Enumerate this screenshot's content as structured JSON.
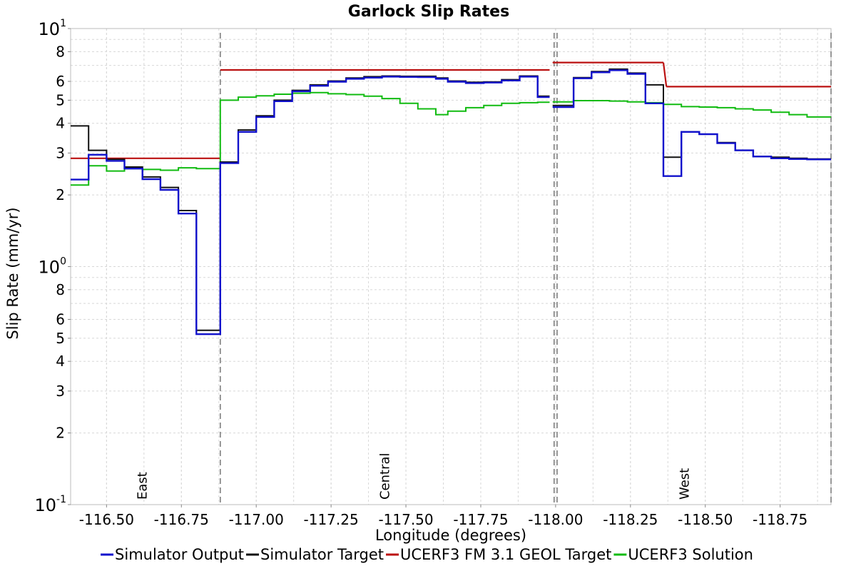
{
  "chart_data": {
    "type": "line",
    "title": "Garlock Slip Rates",
    "xlabel": "Longitude (degrees)",
    "ylabel": "Slip Rate (mm/yr)",
    "xlim": [
      -116.38,
      -118.92
    ],
    "ylim": [
      0.1,
      10
    ],
    "y_scale": "log",
    "grid": true,
    "legend_position": "bottom",
    "x_ticks": [
      -116.5,
      -116.75,
      -117.0,
      -117.25,
      -117.5,
      -117.75,
      -118.0,
      -118.25,
      -118.5,
      -118.75
    ],
    "x_tick_labels": [
      "-116.50",
      "-116.75",
      "-117.00",
      "-117.25",
      "-117.50",
      "-117.75",
      "-118.00",
      "-118.25",
      "-118.50",
      "-118.75"
    ],
    "y_major_ticks": [
      {
        "value": 10,
        "base": "10",
        "exp": "1"
      },
      {
        "value": 1,
        "base": "10",
        "exp": "0"
      },
      {
        "value": 0.1,
        "base": "10",
        "exp": "-1"
      }
    ],
    "y_minor_ticks": [
      {
        "value": 8,
        "label": "8"
      },
      {
        "value": 6,
        "label": "6"
      },
      {
        "value": 5,
        "label": "5"
      },
      {
        "value": 4,
        "label": "4"
      },
      {
        "value": 3,
        "label": "3"
      },
      {
        "value": 2,
        "label": "2"
      },
      {
        "value": 0.8,
        "label": "8"
      },
      {
        "value": 0.6,
        "label": "6"
      },
      {
        "value": 0.5,
        "label": "5"
      },
      {
        "value": 0.4,
        "label": "4"
      },
      {
        "value": 0.3,
        "label": "3"
      },
      {
        "value": 0.2,
        "label": "2"
      }
    ],
    "section_boundaries": [
      -116.88,
      -117.995,
      -118.005,
      -118.92
    ],
    "section_labels": [
      {
        "text": "East",
        "x": -116.62
      },
      {
        "text": "Central",
        "x": -117.43
      },
      {
        "text": "West",
        "x": -118.43
      }
    ],
    "series": [
      {
        "name": "UCERF3 FM 3.1 GEOL Target",
        "color": "#bb1111",
        "segments": [
          {
            "x": [
              -116.38,
              -116.88
            ],
            "y": [
              2.85,
              2.85
            ]
          },
          {
            "x": [
              -116.88,
              -117.98
            ],
            "y": [
              6.7,
              6.7
            ]
          },
          {
            "x": [
              -117.99,
              -118.36
            ],
            "y": [
              7.2,
              7.2
            ]
          },
          {
            "x": [
              -118.36,
              -118.37
            ],
            "y": [
              7.2,
              5.7
            ]
          },
          {
            "x": [
              -118.37,
              -118.92
            ],
            "y": [
              5.7,
              5.7
            ]
          }
        ]
      },
      {
        "name": "UCERF3 Solution",
        "color": "#11bb11",
        "steps": [
          [
            -116.38,
            -116.44,
            2.2
          ],
          [
            -116.44,
            -116.5,
            2.65
          ],
          [
            -116.5,
            -116.56,
            2.52
          ],
          [
            -116.56,
            -116.62,
            2.58
          ],
          [
            -116.62,
            -116.68,
            2.56
          ],
          [
            -116.68,
            -116.74,
            2.54
          ],
          [
            -116.74,
            -116.8,
            2.6
          ],
          [
            -116.8,
            -116.88,
            2.58
          ],
          [
            -116.88,
            -116.94,
            5.0
          ],
          [
            -116.94,
            -117.0,
            5.15
          ],
          [
            -117.0,
            -117.06,
            5.22
          ],
          [
            -117.06,
            -117.12,
            5.3
          ],
          [
            -117.12,
            -117.18,
            5.35
          ],
          [
            -117.18,
            -117.24,
            5.38
          ],
          [
            -117.24,
            -117.3,
            5.32
          ],
          [
            -117.3,
            -117.36,
            5.28
          ],
          [
            -117.36,
            -117.42,
            5.2
          ],
          [
            -117.42,
            -117.48,
            5.08
          ],
          [
            -117.48,
            -117.54,
            4.85
          ],
          [
            -117.54,
            -117.6,
            4.6
          ],
          [
            -117.6,
            -117.64,
            4.35
          ],
          [
            -117.64,
            -117.7,
            4.5
          ],
          [
            -117.7,
            -117.76,
            4.65
          ],
          [
            -117.76,
            -117.82,
            4.75
          ],
          [
            -117.82,
            -117.88,
            4.85
          ],
          [
            -117.88,
            -117.94,
            4.88
          ],
          [
            -117.94,
            -117.98,
            4.9
          ],
          [
            -117.99,
            -118.06,
            4.92
          ],
          [
            -118.06,
            -118.12,
            4.98
          ],
          [
            -118.12,
            -118.18,
            4.98
          ],
          [
            -118.18,
            -118.24,
            4.96
          ],
          [
            -118.24,
            -118.3,
            4.92
          ],
          [
            -118.3,
            -118.36,
            4.88
          ],
          [
            -118.36,
            -118.42,
            4.8
          ],
          [
            -118.42,
            -118.48,
            4.7
          ],
          [
            -118.48,
            -118.54,
            4.68
          ],
          [
            -118.54,
            -118.6,
            4.65
          ],
          [
            -118.6,
            -118.66,
            4.6
          ],
          [
            -118.66,
            -118.72,
            4.55
          ],
          [
            -118.72,
            -118.78,
            4.45
          ],
          [
            -118.78,
            -118.84,
            4.35
          ],
          [
            -118.84,
            -118.92,
            4.25
          ]
        ]
      },
      {
        "name": "Simulator Target",
        "color": "#111111",
        "steps": [
          [
            -116.38,
            -116.44,
            3.9
          ],
          [
            -116.44,
            -116.5,
            3.08
          ],
          [
            -116.5,
            -116.56,
            2.82
          ],
          [
            -116.56,
            -116.62,
            2.62
          ],
          [
            -116.62,
            -116.68,
            2.38
          ],
          [
            -116.68,
            -116.74,
            2.15
          ],
          [
            -116.74,
            -116.8,
            1.72
          ],
          [
            -116.8,
            -116.88,
            0.54
          ],
          [
            -116.88,
            -116.94,
            2.75
          ],
          [
            -116.94,
            -117.0,
            3.75
          ],
          [
            -117.0,
            -117.06,
            4.3
          ],
          [
            -117.06,
            -117.12,
            5.0
          ],
          [
            -117.12,
            -117.18,
            5.5
          ],
          [
            -117.18,
            -117.24,
            5.8
          ],
          [
            -117.24,
            -117.3,
            6.02
          ],
          [
            -117.3,
            -117.36,
            6.2
          ],
          [
            -117.36,
            -117.42,
            6.28
          ],
          [
            -117.42,
            -117.48,
            6.32
          ],
          [
            -117.48,
            -117.54,
            6.3
          ],
          [
            -117.54,
            -117.6,
            6.3
          ],
          [
            -117.6,
            -117.64,
            6.2
          ],
          [
            -117.64,
            -117.7,
            6.02
          ],
          [
            -117.7,
            -117.76,
            5.95
          ],
          [
            -117.76,
            -117.82,
            5.97
          ],
          [
            -117.82,
            -117.88,
            6.1
          ],
          [
            -117.88,
            -117.94,
            6.32
          ],
          [
            -117.94,
            -117.98,
            5.2
          ],
          [
            -117.99,
            -118.06,
            4.75
          ],
          [
            -118.06,
            -118.12,
            6.22
          ],
          [
            -118.12,
            -118.18,
            6.6
          ],
          [
            -118.18,
            -118.24,
            6.75
          ],
          [
            -118.24,
            -118.3,
            6.5
          ],
          [
            -118.3,
            -118.36,
            5.8
          ],
          [
            -118.36,
            -118.42,
            2.88
          ],
          [
            -118.42,
            -118.48,
            3.68
          ],
          [
            -118.48,
            -118.54,
            3.6
          ],
          [
            -118.54,
            -118.6,
            3.32
          ],
          [
            -118.6,
            -118.66,
            3.08
          ],
          [
            -118.66,
            -118.72,
            2.9
          ],
          [
            -118.72,
            -118.78,
            2.88
          ],
          [
            -118.78,
            -118.84,
            2.85
          ],
          [
            -118.84,
            -118.92,
            2.83
          ]
        ]
      },
      {
        "name": "Simulator Output",
        "color": "#1111cc",
        "steps": [
          [
            -116.38,
            -116.44,
            2.32
          ],
          [
            -116.44,
            -116.5,
            2.95
          ],
          [
            -116.5,
            -116.56,
            2.78
          ],
          [
            -116.56,
            -116.62,
            2.58
          ],
          [
            -116.62,
            -116.68,
            2.33
          ],
          [
            -116.68,
            -116.74,
            2.1
          ],
          [
            -116.74,
            -116.8,
            1.67
          ],
          [
            -116.8,
            -116.88,
            0.52
          ],
          [
            -116.88,
            -116.94,
            2.72
          ],
          [
            -116.94,
            -117.0,
            3.68
          ],
          [
            -117.0,
            -117.06,
            4.25
          ],
          [
            -117.06,
            -117.12,
            4.95
          ],
          [
            -117.12,
            -117.18,
            5.45
          ],
          [
            -117.18,
            -117.24,
            5.75
          ],
          [
            -117.24,
            -117.3,
            5.98
          ],
          [
            -117.3,
            -117.36,
            6.15
          ],
          [
            -117.36,
            -117.42,
            6.22
          ],
          [
            -117.42,
            -117.48,
            6.28
          ],
          [
            -117.48,
            -117.54,
            6.26
          ],
          [
            -117.54,
            -117.6,
            6.25
          ],
          [
            -117.6,
            -117.64,
            6.15
          ],
          [
            -117.64,
            -117.7,
            5.98
          ],
          [
            -117.7,
            -117.76,
            5.9
          ],
          [
            -117.76,
            -117.82,
            5.93
          ],
          [
            -117.82,
            -117.88,
            6.05
          ],
          [
            -117.88,
            -117.94,
            6.28
          ],
          [
            -117.94,
            -117.98,
            5.15
          ],
          [
            -117.99,
            -118.06,
            4.68
          ],
          [
            -118.06,
            -118.12,
            6.18
          ],
          [
            -118.12,
            -118.18,
            6.55
          ],
          [
            -118.18,
            -118.24,
            6.68
          ],
          [
            -118.24,
            -118.3,
            6.45
          ],
          [
            -118.3,
            -118.36,
            4.85
          ],
          [
            -118.36,
            -118.42,
            2.4
          ],
          [
            -118.42,
            -118.48,
            3.68
          ],
          [
            -118.48,
            -118.54,
            3.6
          ],
          [
            -118.54,
            -118.6,
            3.3
          ],
          [
            -118.6,
            -118.66,
            3.08
          ],
          [
            -118.66,
            -118.72,
            2.9
          ],
          [
            -118.72,
            -118.78,
            2.85
          ],
          [
            -118.78,
            -118.84,
            2.83
          ],
          [
            -118.84,
            -118.92,
            2.82
          ]
        ]
      }
    ],
    "legend": [
      {
        "label": "Simulator Output",
        "color": "#1111cc"
      },
      {
        "label": "Simulator Target",
        "color": "#111111"
      },
      {
        "label": "UCERF3 FM 3.1 GEOL Target",
        "color": "#bb1111"
      },
      {
        "label": "UCERF3 Solution",
        "color": "#11bb11"
      }
    ]
  }
}
